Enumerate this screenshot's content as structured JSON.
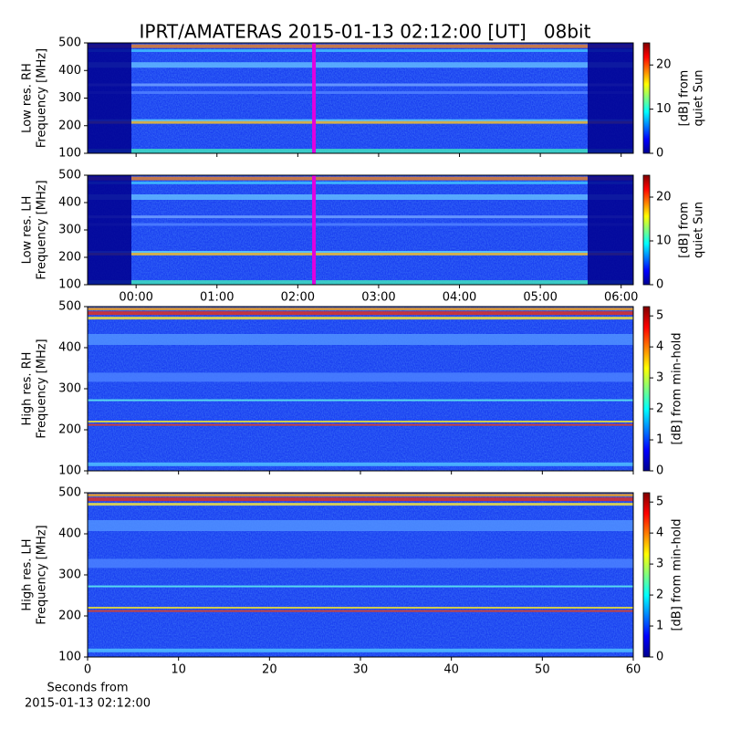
{
  "title": "IPRT/AMATERAS 2015-01-13 02:12:00 [UT]   08bit",
  "x_caption": [
    "Seconds from",
    "2015-01-13 02:12:00"
  ],
  "chart_data": [
    {
      "type": "heatmap",
      "ylabel": [
        "Low res. RH",
        "Frequency [MHz]"
      ],
      "ylim": [
        100,
        500
      ],
      "yticks": [
        100,
        200,
        300,
        400,
        500
      ],
      "xlim": [
        -0.6,
        6.15
      ],
      "xticks": [
        0,
        1,
        2,
        3,
        4,
        5,
        6
      ],
      "marker_x": 2.2,
      "marker_color": "#e000e0",
      "colorbar": {
        "label": [
          "[dB] from",
          "quiet Sun"
        ],
        "lim": [
          0,
          25
        ],
        "ticks": [
          0,
          10,
          20
        ]
      }
    },
    {
      "type": "heatmap",
      "ylabel": [
        "Low res. LH",
        "Frequency [MHz]"
      ],
      "ylim": [
        100,
        500
      ],
      "yticks": [
        100,
        200,
        300,
        400,
        500
      ],
      "xlim": [
        -0.6,
        6.15
      ],
      "xticks": [
        {
          "value": 0,
          "label": "00:00"
        },
        {
          "value": 1,
          "label": "01:00"
        },
        {
          "value": 2,
          "label": "02:00"
        },
        {
          "value": 3,
          "label": "03:00"
        },
        {
          "value": 4,
          "label": "04:00"
        },
        {
          "value": 5,
          "label": "05:00"
        },
        {
          "value": 6,
          "label": "06:00"
        }
      ],
      "marker_x": 2.2,
      "marker_color": "#e000e0",
      "colorbar": {
        "label": [
          "[dB] from",
          "quiet Sun"
        ],
        "lim": [
          0,
          25
        ],
        "ticks": [
          0,
          10,
          20
        ]
      }
    },
    {
      "type": "heatmap",
      "ylabel": [
        "High res. RH",
        "Frequency [MHz]"
      ],
      "ylim": [
        100,
        500
      ],
      "yticks": [
        100,
        200,
        300,
        400,
        500
      ],
      "xlim": [
        0,
        60
      ],
      "xticks": [
        0,
        10,
        20,
        30,
        40,
        50,
        60
      ],
      "colorbar": {
        "label": [
          "[dB] from min-hold"
        ],
        "lim": [
          0,
          5.3
        ],
        "ticks": [
          0,
          1,
          2,
          3,
          4,
          5
        ]
      }
    },
    {
      "type": "heatmap",
      "ylabel": [
        "High res. LH",
        "Frequency [MHz]"
      ],
      "ylim": [
        100,
        500
      ],
      "yticks": [
        100,
        200,
        300,
        400,
        500
      ],
      "xlim": [
        0,
        60
      ],
      "xticks": [
        {
          "value": 0,
          "label": "0"
        },
        {
          "value": 10,
          "label": "10"
        },
        {
          "value": 20,
          "label": "20"
        },
        {
          "value": 30,
          "label": "30"
        },
        {
          "value": 40,
          "label": "40"
        },
        {
          "value": 50,
          "label": "50"
        },
        {
          "value": 60,
          "label": "60"
        }
      ],
      "colorbar": {
        "label": [
          "[dB] from min-hold"
        ],
        "lim": [
          0,
          5.3
        ],
        "ticks": [
          0,
          1,
          2,
          3,
          4,
          5
        ]
      }
    }
  ]
}
